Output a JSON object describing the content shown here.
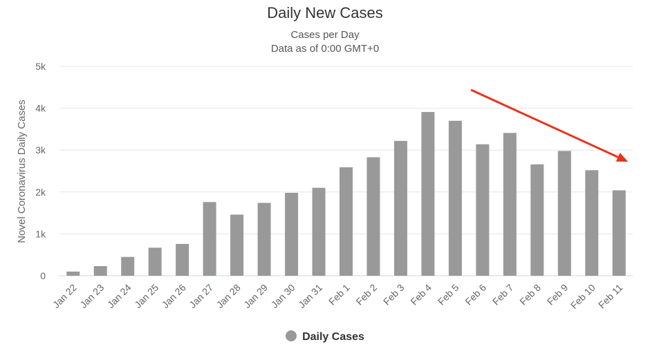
{
  "chart_data": {
    "type": "bar",
    "title": "Daily New Cases",
    "subtitle_lines": [
      "Cases per Day",
      "Data as of 0:00 GMT+0"
    ],
    "ylabel": "Novel Coronavirus Daily Cases",
    "xlabel": "",
    "ylim": [
      0,
      5000
    ],
    "y_ticks": [
      0,
      1000,
      2000,
      3000,
      4000,
      5000
    ],
    "y_tick_labels": [
      "0",
      "1k",
      "2k",
      "3k",
      "4k",
      "5k"
    ],
    "grid": true,
    "categories": [
      "Jan 22",
      "Jan 23",
      "Jan 24",
      "Jan 25",
      "Jan 26",
      "Jan 27",
      "Jan 28",
      "Jan 29",
      "Jan 30",
      "Jan 31",
      "Feb 1",
      "Feb 2",
      "Feb 3",
      "Feb 4",
      "Feb 5",
      "Feb 6",
      "Feb 7",
      "Feb 8",
      "Feb 9",
      "Feb 10",
      "Feb 11"
    ],
    "series": [
      {
        "name": "Daily Cases",
        "color": "#999999",
        "values": [
          100,
          230,
          450,
          670,
          760,
          1760,
          1460,
          1740,
          1980,
          2100,
          2590,
          2830,
          3220,
          3910,
          3700,
          3140,
          3410,
          2660,
          2980,
          2520,
          2040
        ]
      }
    ],
    "legend_position": "bottom-center",
    "annotation": {
      "type": "arrow",
      "color": "#e8321c",
      "meaning": "downward trend",
      "from_category": "Feb 6",
      "to_category": "Feb 11"
    }
  }
}
